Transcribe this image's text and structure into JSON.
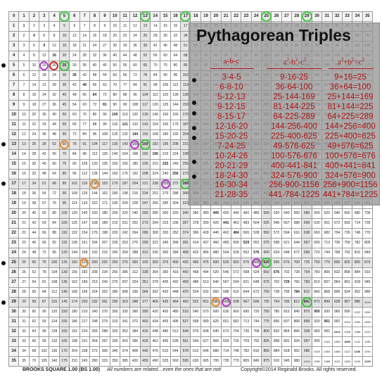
{
  "grid": {
    "size": 35
  },
  "panel": {
    "title": "Pythagorean Triples",
    "columns": [
      {
        "header": "a-b-c",
        "rows": [
          "3-4-5",
          "6-8-10",
          "5-12-13",
          "9-12-15",
          "8-15-17",
          "12-16-20",
          "15-20-25",
          "7-24-25",
          "10-24-26",
          "20-21-29",
          "18-24-30",
          "16-30-34",
          "21-28-35"
        ]
      },
      {
        "header": "a²-b²-c²",
        "rows": [
          "9-16-25",
          "36-64-100",
          "25-144-169",
          "81-144-225",
          "64-225-289",
          "144-256-400",
          "225-400-625",
          "49-576-625",
          "100-576-676",
          "400-441-841",
          "324-576-900",
          "256-900-1156",
          "441-784-1225"
        ]
      },
      {
        "header": "a²+b²=c²",
        "rows": [
          "9+16=25",
          "36+64=100",
          "25+144=169",
          "81+144=225",
          "64+225=289",
          "144+256=400",
          "225+400=625",
          "49+576=625",
          "100+576=676",
          "400+441=841",
          "324+576=900",
          "256+900=1156",
          "441+784=1225"
        ]
      }
    ]
  },
  "footer": {
    "title": "BROOKS SQUARE 1.00 (BS 1.00)",
    "note": "All numbers are related…even the ones that are not!",
    "copyright": "Copyright©2014 Reginald Brooks. All rights reserved."
  },
  "colors": {
    "text_red": "#b11414",
    "green": "#3ec73e",
    "purple": "#b03cc4",
    "orange": "#e88a2a"
  }
}
